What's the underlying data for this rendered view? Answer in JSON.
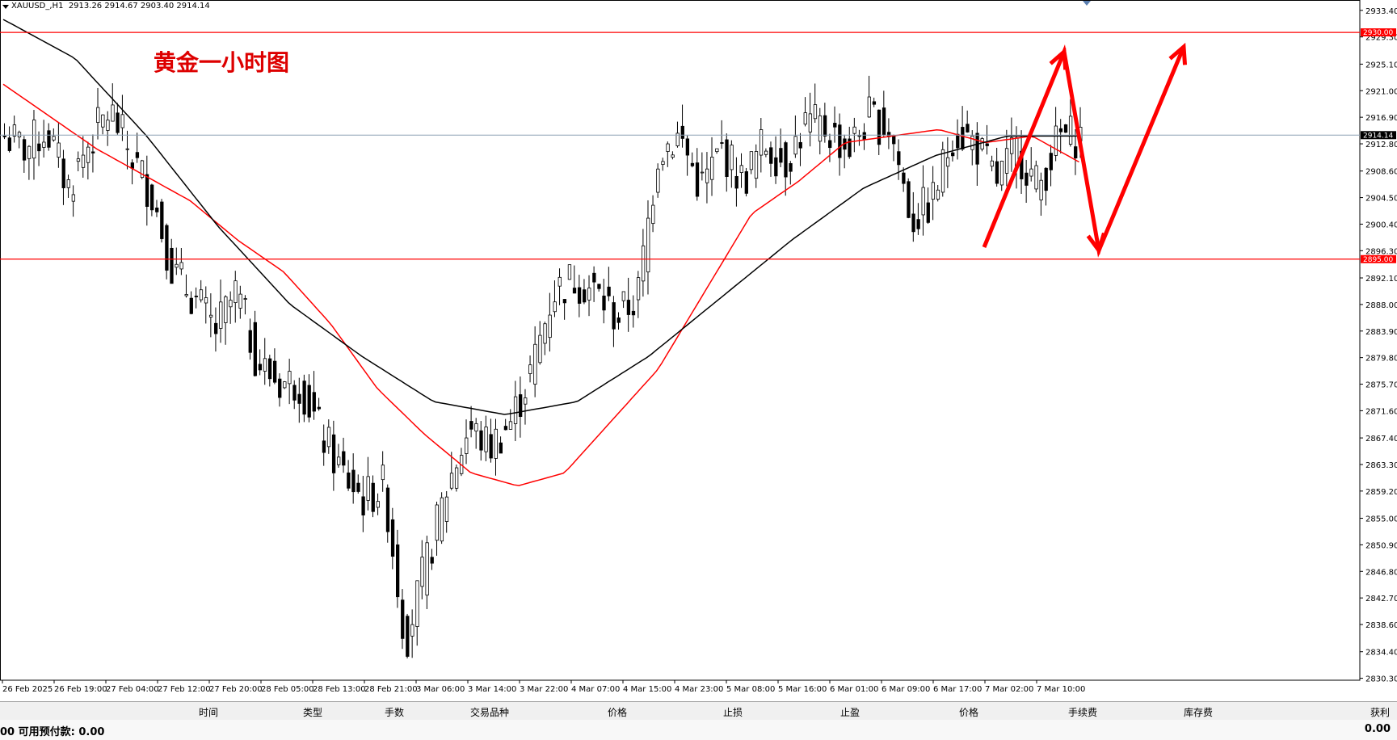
{
  "header": {
    "symbol": "XAUUSD_,H1",
    "ohlc": "2913.26 2914.67 2903.40 2914.14"
  },
  "annotation": {
    "title": "黄金一小时图"
  },
  "chart_data": {
    "type": "candlestick",
    "ylim": [
      2830.0,
      2935.0
    ],
    "y_ticks": [
      "2933.40",
      "2929.30",
      "2925.10",
      "2921.00",
      "2916.90",
      "2912.80",
      "2908.60",
      "2904.50",
      "2900.40",
      "2896.30",
      "2892.10",
      "2888.00",
      "2883.90",
      "2879.80",
      "2875.70",
      "2871.60",
      "2867.40",
      "2863.30",
      "2859.20",
      "2855.00",
      "2850.90",
      "2846.80",
      "2842.70",
      "2838.60",
      "2834.40",
      "2830.30"
    ],
    "x_ticks": [
      "26 Feb 2025",
      "26 Feb 19:00",
      "27 Feb 04:00",
      "27 Feb 12:00",
      "27 Feb 20:00",
      "28 Feb 05:00",
      "28 Feb 13:00",
      "28 Feb 21:00",
      "3 Mar 06:00",
      "3 Mar 14:00",
      "3 Mar 22:00",
      "4 Mar 07:00",
      "4 Mar 15:00",
      "4 Mar 23:00",
      "5 Mar 08:00",
      "5 Mar 16:00",
      "6 Mar 01:00",
      "6 Mar 09:00",
      "6 Mar 17:00",
      "7 Mar 02:00",
      "7 Mar 10:00"
    ],
    "current_price": "2914.14",
    "horizontal_levels": [
      {
        "price": 2930.0,
        "label": "2930.00",
        "color": "#ff0000"
      },
      {
        "price": 2895.0,
        "label": "2895.00",
        "color": "#ff0000"
      }
    ],
    "current_price_line_color": "#8ca0b4",
    "ma_colors": {
      "fast": "#ff0000",
      "slow": "#000000"
    },
    "close_anchors": [
      2914,
      2912,
      2915,
      2906,
      2913,
      2918,
      2911,
      2905,
      2893,
      2889,
      2884,
      2890,
      2879,
      2876,
      2876,
      2868,
      2862,
      2858,
      2860,
      2836,
      2848,
      2860,
      2869,
      2866,
      2870,
      2878,
      2890,
      2892,
      2890,
      2886,
      2889,
      2912,
      2914,
      2906,
      2912,
      2907,
      2913,
      2910,
      2916,
      2915,
      2912,
      2917,
      2915,
      2901,
      2904,
      2915,
      2913,
      2907,
      2912,
      2906,
      2914,
      2914
    ],
    "fast_ma_anchors": [
      2922,
      2917,
      2912,
      2908,
      2904,
      2898,
      2893,
      2885,
      2875,
      2868,
      2862,
      2860,
      2862,
      2870,
      2878,
      2890,
      2902,
      2907,
      2913,
      2914,
      2915,
      2913,
      2914,
      2910
    ],
    "slow_ma_anchors": [
      2932,
      2926,
      2914,
      2900,
      2888,
      2880,
      2873,
      2871,
      2873,
      2880,
      2889,
      2898,
      2906,
      2911,
      2914,
      2914
    ],
    "arrows": [
      {
        "from": [
          2900,
          2898
        ],
        "to": [
          2932,
          2928
        ],
        "color": "#ff0000"
      }
    ]
  },
  "terminal": {
    "columns": [
      {
        "label": "时间"
      },
      {
        "label": "类型"
      },
      {
        "label": "手数"
      },
      {
        "label": "交易品种"
      },
      {
        "label": "价格"
      },
      {
        "label": "止损"
      },
      {
        "label": "止盈"
      },
      {
        "label": "价格"
      },
      {
        "label": "手续费"
      },
      {
        "label": "库存费"
      },
      {
        "label": "获利"
      }
    ],
    "status_left": "00   可用预付款: 0.00",
    "status_right": "0.00"
  }
}
